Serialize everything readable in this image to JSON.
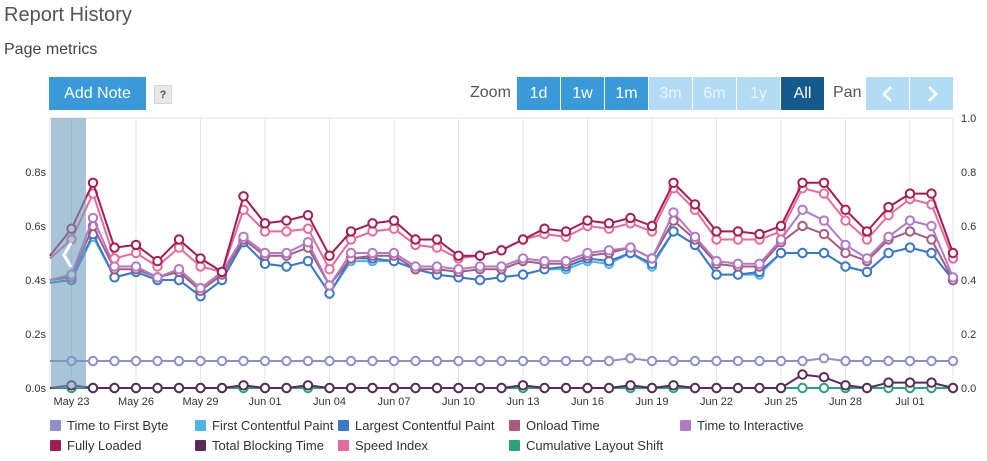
{
  "header": {
    "title": "Report History",
    "subtitle": "Page metrics"
  },
  "toolbar": {
    "add_note_label": "Add Note",
    "help_label": "?",
    "zoom_label": "Zoom",
    "zoom_options": [
      {
        "label": "1d",
        "state": "on"
      },
      {
        "label": "1w",
        "state": "on"
      },
      {
        "label": "1m",
        "state": "on"
      },
      {
        "label": "3m",
        "state": "off"
      },
      {
        "label": "6m",
        "state": "off"
      },
      {
        "label": "1y",
        "state": "off"
      },
      {
        "label": "All",
        "state": "sel"
      }
    ],
    "pan_label": "Pan",
    "pan_left_icon": "chevron-left-icon",
    "pan_right_icon": "chevron-right-icon"
  },
  "colors": {
    "ttfb": "#8e8fc9",
    "fcp": "#4fb4e6",
    "lcp": "#3b78c8",
    "onload": "#a85a7e",
    "tti": "#b07ac8",
    "fully": "#a31d52",
    "tbt": "#5a2a5a",
    "si": "#e56b9f",
    "cls": "#2aa37a",
    "button": "#3a9ad9",
    "button_selected": "#155a8c",
    "button_disabled": "#b4dbf6"
  },
  "chart_data": {
    "type": "line",
    "x": [
      "May 22",
      "May 23",
      "May 24",
      "May 25",
      "May 26",
      "May 27",
      "May 28",
      "May 29",
      "May 30",
      "May 31",
      "Jun 01",
      "Jun 02",
      "Jun 03",
      "Jun 04",
      "Jun 05",
      "Jun 06",
      "Jun 07",
      "Jun 08",
      "Jun 09",
      "Jun 10",
      "Jun 11",
      "Jun 12",
      "Jun 13",
      "Jun 14",
      "Jun 15",
      "Jun 16",
      "Jun 17",
      "Jun 18",
      "Jun 19",
      "Jun 20",
      "Jun 21",
      "Jun 22",
      "Jun 23",
      "Jun 24",
      "Jun 25",
      "Jun 26",
      "Jun 27",
      "Jun 28",
      "Jun 29",
      "Jun 30",
      "Jul 01",
      "Jul 02",
      "Jul 03"
    ],
    "x_tick_labels": [
      "May 23",
      "May 26",
      "May 29",
      "Jun 01",
      "Jun 04",
      "Jun 07",
      "Jun 10",
      "Jun 13",
      "Jun 16",
      "Jun 19",
      "Jun 22",
      "Jun 25",
      "Jun 28",
      "Jul 01"
    ],
    "y_left_ticks": [
      "0.0s",
      "0.2s",
      "0.4s",
      "0.6s",
      "0.8s"
    ],
    "y_right_ticks": [
      "0.0",
      "0.2",
      "0.4",
      "0.6",
      "0.8",
      "1.0"
    ],
    "ylim_left": [
      0,
      1
    ],
    "ylim_right": [
      0,
      1
    ],
    "grid": "vertical",
    "legend_position": "bottom",
    "series": [
      {
        "key": "ttfb",
        "name": "Time to First Byte",
        "axis": "left",
        "values": [
          0.1,
          0.1,
          0.1,
          0.1,
          0.1,
          0.1,
          0.1,
          0.1,
          0.1,
          0.1,
          0.1,
          0.1,
          0.1,
          0.1,
          0.1,
          0.1,
          0.1,
          0.1,
          0.1,
          0.1,
          0.1,
          0.1,
          0.1,
          0.1,
          0.1,
          0.1,
          0.1,
          0.11,
          0.1,
          0.1,
          0.1,
          0.1,
          0.1,
          0.1,
          0.1,
          0.1,
          0.11,
          0.1,
          0.1,
          0.1,
          0.1,
          0.1,
          0.1
        ]
      },
      {
        "key": "fcp",
        "name": "First Contentful Paint",
        "axis": "left",
        "values": [
          0.39,
          0.4,
          0.56,
          0.41,
          0.43,
          0.4,
          0.4,
          0.34,
          0.4,
          0.54,
          0.46,
          0.45,
          0.47,
          0.35,
          0.47,
          0.47,
          0.47,
          0.44,
          0.42,
          0.41,
          0.4,
          0.41,
          0.42,
          0.44,
          0.44,
          0.47,
          0.46,
          0.5,
          0.45,
          0.58,
          0.53,
          0.42,
          0.42,
          0.42,
          0.5,
          0.5,
          0.5,
          0.45,
          0.43,
          0.5,
          0.52,
          0.5,
          0.4
        ]
      },
      {
        "key": "lcp",
        "name": "Largest Contentful Paint",
        "axis": "left",
        "values": [
          0.39,
          0.4,
          0.57,
          0.41,
          0.43,
          0.4,
          0.4,
          0.34,
          0.4,
          0.54,
          0.46,
          0.45,
          0.47,
          0.35,
          0.48,
          0.48,
          0.47,
          0.44,
          0.42,
          0.41,
          0.4,
          0.41,
          0.42,
          0.44,
          0.45,
          0.48,
          0.47,
          0.5,
          0.46,
          0.58,
          0.53,
          0.42,
          0.42,
          0.43,
          0.5,
          0.5,
          0.5,
          0.45,
          0.43,
          0.5,
          0.52,
          0.5,
          0.4
        ]
      },
      {
        "key": "onload",
        "name": "Onload Time",
        "axis": "left",
        "values": [
          0.4,
          0.41,
          0.6,
          0.44,
          0.44,
          0.41,
          0.43,
          0.36,
          0.42,
          0.55,
          0.49,
          0.49,
          0.52,
          0.38,
          0.48,
          0.49,
          0.49,
          0.44,
          0.44,
          0.43,
          0.44,
          0.44,
          0.47,
          0.46,
          0.46,
          0.49,
          0.5,
          0.52,
          0.48,
          0.62,
          0.55,
          0.46,
          0.45,
          0.45,
          0.54,
          0.6,
          0.57,
          0.5,
          0.47,
          0.55,
          0.58,
          0.55,
          0.4
        ]
      },
      {
        "key": "tti",
        "name": "Time to Interactive",
        "axis": "left",
        "values": [
          0.4,
          0.42,
          0.63,
          0.45,
          0.45,
          0.41,
          0.44,
          0.37,
          0.43,
          0.56,
          0.5,
          0.5,
          0.54,
          0.38,
          0.5,
          0.5,
          0.5,
          0.45,
          0.45,
          0.44,
          0.45,
          0.45,
          0.48,
          0.47,
          0.47,
          0.5,
          0.51,
          0.52,
          0.48,
          0.65,
          0.56,
          0.47,
          0.46,
          0.46,
          0.55,
          0.66,
          0.62,
          0.53,
          0.48,
          0.56,
          0.62,
          0.6,
          0.41
        ]
      },
      {
        "key": "fully",
        "name": "Fully Loaded",
        "axis": "left",
        "values": [
          0.49,
          0.59,
          0.76,
          0.52,
          0.53,
          0.47,
          0.55,
          0.48,
          0.43,
          0.71,
          0.61,
          0.62,
          0.64,
          0.49,
          0.58,
          0.61,
          0.62,
          0.55,
          0.55,
          0.49,
          0.49,
          0.51,
          0.55,
          0.59,
          0.58,
          0.62,
          0.61,
          0.63,
          0.6,
          0.76,
          0.68,
          0.58,
          0.58,
          0.57,
          0.6,
          0.76,
          0.76,
          0.66,
          0.58,
          0.67,
          0.72,
          0.72,
          0.5
        ]
      },
      {
        "key": "tbt",
        "name": "Total Blocking Time",
        "axis": "left",
        "values": [
          0.0,
          0.01,
          0.0,
          0.0,
          0.0,
          0.0,
          0.0,
          0.0,
          0.0,
          0.01,
          0.0,
          0.0,
          0.01,
          0.0,
          0.0,
          0.0,
          0.0,
          0.0,
          0.0,
          0.0,
          0.0,
          0.0,
          0.01,
          0.0,
          0.0,
          0.0,
          0.0,
          0.01,
          0.0,
          0.01,
          0.0,
          0.0,
          0.0,
          0.0,
          0.0,
          0.05,
          0.04,
          0.01,
          0.0,
          0.02,
          0.02,
          0.02,
          0.0
        ]
      },
      {
        "key": "si",
        "name": "Speed Index",
        "axis": "left",
        "values": [
          0.48,
          0.55,
          0.72,
          0.48,
          0.5,
          0.45,
          0.52,
          0.45,
          0.43,
          0.66,
          0.58,
          0.58,
          0.59,
          0.44,
          0.55,
          0.58,
          0.59,
          0.53,
          0.52,
          0.48,
          0.49,
          0.51,
          0.55,
          0.57,
          0.56,
          0.6,
          0.59,
          0.61,
          0.58,
          0.74,
          0.66,
          0.55,
          0.55,
          0.55,
          0.58,
          0.74,
          0.72,
          0.62,
          0.55,
          0.64,
          0.7,
          0.68,
          0.48
        ]
      },
      {
        "key": "cls",
        "name": "Cumulative Layout Shift",
        "axis": "right",
        "values": [
          0.0,
          0.0,
          0.0,
          0.0,
          0.0,
          0.0,
          0.0,
          0.0,
          0.0,
          0.0,
          0.0,
          0.0,
          0.0,
          0.0,
          0.0,
          0.0,
          0.0,
          0.0,
          0.0,
          0.0,
          0.0,
          0.0,
          0.0,
          0.0,
          0.0,
          0.0,
          0.0,
          0.0,
          0.0,
          0.0,
          0.0,
          0.0,
          0.0,
          0.0,
          0.0,
          0.0,
          0.0,
          0.0,
          0.0,
          0.0,
          0.0,
          0.0,
          0.0
        ]
      }
    ]
  }
}
